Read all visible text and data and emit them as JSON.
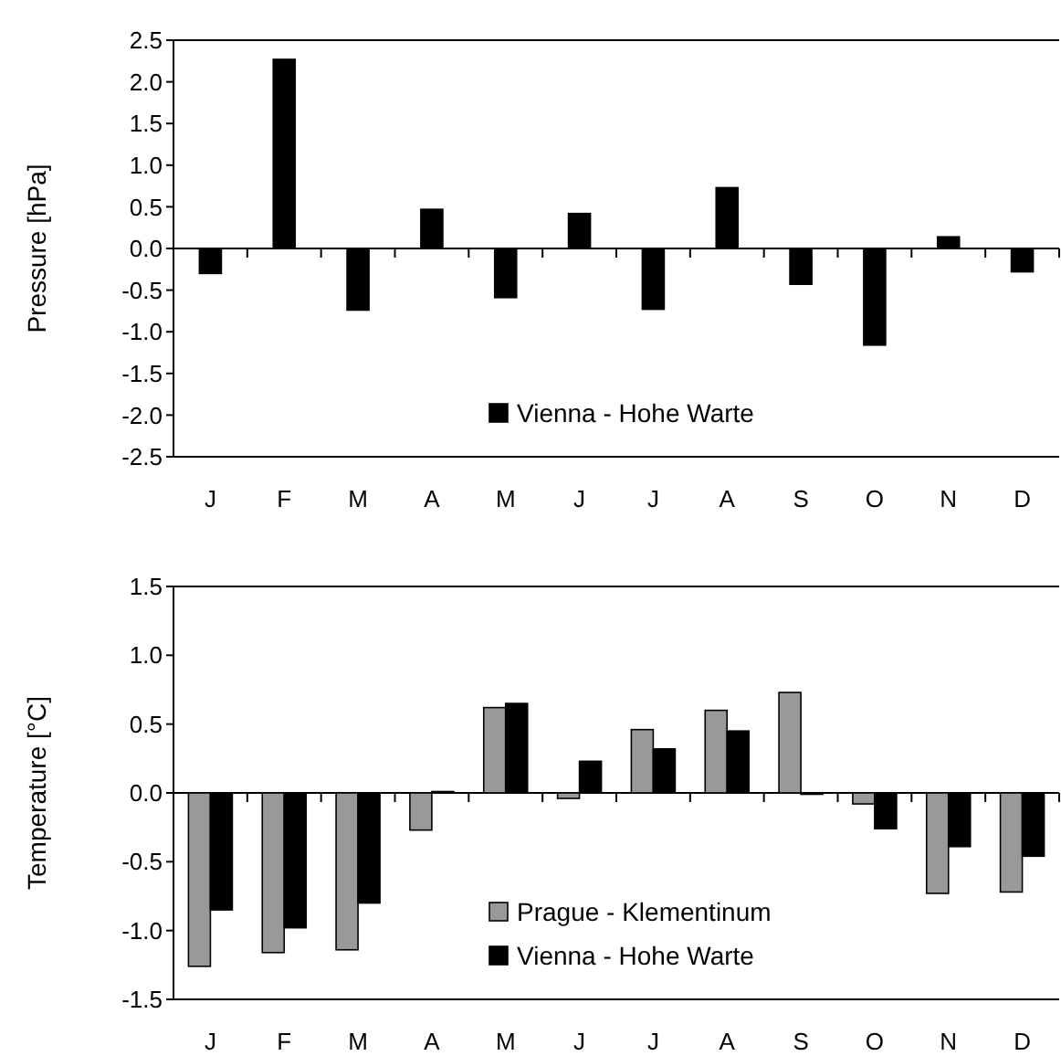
{
  "chart_data": [
    {
      "type": "bar",
      "ylabel": "Pressure [hPa]",
      "categories": [
        "J",
        "F",
        "M",
        "A",
        "M",
        "J",
        "J",
        "A",
        "S",
        "O",
        "N",
        "D"
      ],
      "series": [
        {
          "name": "Vienna - Hohe Warte",
          "color": "#000000",
          "values": [
            -0.3,
            2.27,
            -0.74,
            0.47,
            -0.59,
            0.42,
            -0.73,
            0.73,
            -0.43,
            -1.16,
            0.14,
            -0.28
          ]
        }
      ],
      "ylim": [
        -2.5,
        2.5
      ],
      "yticks": [
        {
          "value": -2.5,
          "label": "-2.5"
        },
        {
          "value": -2,
          "label": "-2.0"
        },
        {
          "value": -1.5,
          "label": "-1.5"
        },
        {
          "value": -1,
          "label": "-1.0"
        },
        {
          "value": -0.5,
          "label": "-0.5"
        },
        {
          "value": 0,
          "label": "0.0"
        },
        {
          "value": 0.5,
          "label": "0.5"
        },
        {
          "value": 1,
          "label": "1.0"
        },
        {
          "value": 1.5,
          "label": "1.5"
        },
        {
          "value": 2,
          "label": "2.0"
        },
        {
          "value": 2.5,
          "label": "2.5"
        }
      ],
      "legend": "bottom"
    },
    {
      "type": "bar",
      "ylabel": "Temperature [°C]",
      "categories": [
        "J",
        "F",
        "M",
        "A",
        "M",
        "J",
        "J",
        "A",
        "S",
        "O",
        "N",
        "D"
      ],
      "series": [
        {
          "name": "Prague - Klementinum",
          "color": "#999999",
          "values": [
            -1.26,
            -1.16,
            -1.14,
            -0.27,
            0.62,
            -0.04,
            0.46,
            0.6,
            0.73,
            -0.08,
            -0.73,
            -0.72
          ]
        },
        {
          "name": "Vienna - Hohe Warte",
          "color": "#000000",
          "values": [
            -0.85,
            -0.98,
            -0.8,
            0.01,
            0.65,
            0.23,
            0.32,
            0.45,
            -0.01,
            -0.26,
            -0.39,
            -0.46
          ]
        }
      ],
      "ylim": [
        -1.5,
        1.5
      ],
      "yticks": [
        {
          "value": -1.5,
          "label": "-1.5"
        },
        {
          "value": -1,
          "label": "-1.0"
        },
        {
          "value": -0.5,
          "label": "-0.5"
        },
        {
          "value": 0,
          "label": "0.0"
        },
        {
          "value": 0.5,
          "label": "0.5"
        },
        {
          "value": 1,
          "label": "1.0"
        },
        {
          "value": 1.5,
          "label": "1.5"
        }
      ],
      "legend": "bottom"
    }
  ]
}
